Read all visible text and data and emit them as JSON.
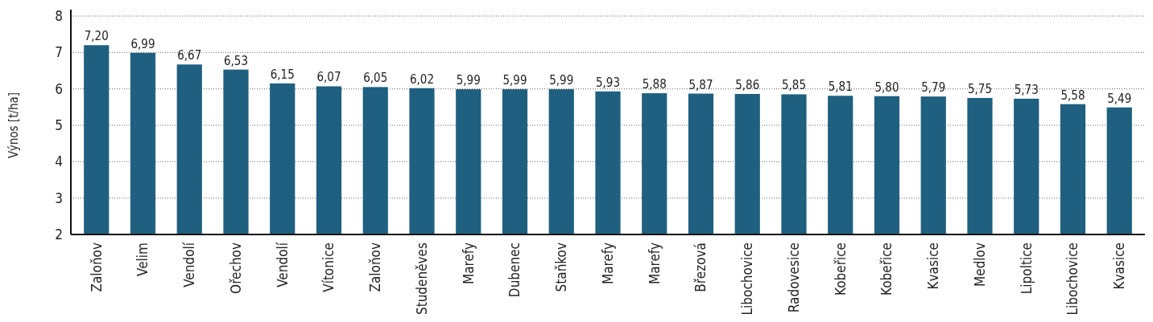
{
  "chart_data": {
    "type": "bar",
    "ylabel": "Výnos [t/ha]",
    "categories": [
      "Zaloňov",
      "Velim",
      "Vendolí",
      "Ořechov",
      "Vendolí",
      "Vítonice",
      "Zaloňov",
      "Studeněves",
      "Marefy",
      "Dubenec",
      "Staňkov",
      "Marefy",
      "Marefy",
      "Březová",
      "Libochovice",
      "Radovesice",
      "Kobeřice",
      "Kobeřice",
      "Kvasice",
      "Medlov",
      "Lipoltice",
      "Libochovice",
      "Kvasice"
    ],
    "values": [
      7.2,
      6.99,
      6.67,
      6.53,
      6.15,
      6.07,
      6.05,
      6.02,
      5.99,
      5.99,
      5.99,
      5.93,
      5.88,
      5.87,
      5.86,
      5.85,
      5.81,
      5.8,
      5.79,
      5.75,
      5.73,
      5.58,
      5.49
    ],
    "value_labels": [
      "7,20",
      "6,99",
      "6,67",
      "6,53",
      "6,15",
      "6,07",
      "6,05",
      "6,02",
      "5,99",
      "5,99",
      "5,99",
      "5,93",
      "5,88",
      "5,87",
      "5,86",
      "5,85",
      "5,81",
      "5,80",
      "5,79",
      "5,75",
      "5,73",
      "5,58",
      "5,49"
    ],
    "color": "#1f5f80",
    "ylim": [
      2,
      8
    ],
    "yticks": [
      2,
      3,
      4,
      5,
      6,
      7,
      8
    ],
    "grid": "y"
  }
}
